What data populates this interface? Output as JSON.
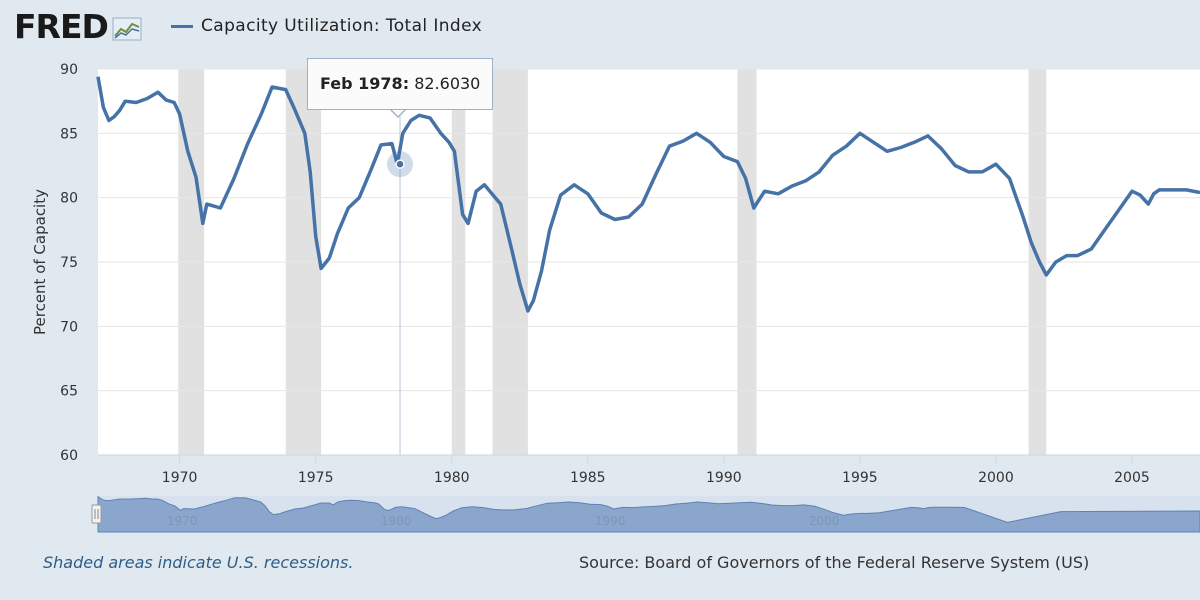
{
  "header": {
    "logo_text": "FRED",
    "logo_icon": "fred-graph-icon"
  },
  "legend": {
    "label": "Capacity Utilization: Total Index"
  },
  "tooltip": {
    "date": "Feb 1978:",
    "value": "82.6030"
  },
  "footer": {
    "note": "Shaded areas indicate U.S. recessions.",
    "source": "Source: Board of Governors of the Federal Reserve System (US)"
  },
  "colors": {
    "line": "#4572a7",
    "recession": "#e1e1e1",
    "background": "#e1e9f0",
    "plot": "#ffffff",
    "navigator": "#8aa6cc"
  },
  "chart_data": {
    "type": "line",
    "title": "",
    "xlabel": "",
    "ylabel": "Percent of Capacity",
    "xlim": [
      1967.0,
      2007.5
    ],
    "ylim": [
      60,
      90
    ],
    "x_ticks": [
      1970,
      1975,
      1980,
      1985,
      1990,
      1995,
      2000,
      2005
    ],
    "y_ticks": [
      60,
      65,
      70,
      75,
      80,
      85,
      90
    ],
    "grid": true,
    "legend_position": "top-left",
    "recessions": [
      [
        1969.95,
        1970.9
      ],
      [
        1973.9,
        1975.2
      ],
      [
        1980.0,
        1980.5
      ],
      [
        1981.5,
        1982.8
      ],
      [
        1990.5,
        1991.2
      ],
      [
        2001.2,
        2001.85
      ]
    ],
    "series": [
      {
        "name": "Capacity Utilization: Total Index",
        "x": [
          1967.0,
          1967.2,
          1967.4,
          1967.6,
          1967.8,
          1968.0,
          1968.4,
          1968.8,
          1969.2,
          1969.5,
          1969.8,
          1970.0,
          1970.3,
          1970.6,
          1970.85,
          1971.0,
          1971.5,
          1972.0,
          1972.5,
          1973.0,
          1973.4,
          1973.9,
          1974.2,
          1974.6,
          1974.8,
          1975.0,
          1975.2,
          1975.5,
          1975.8,
          1976.2,
          1976.6,
          1977.0,
          1977.4,
          1977.8,
          1978.0,
          1978.2,
          1978.5,
          1978.8,
          1979.2,
          1979.6,
          1979.9,
          1980.1,
          1980.4,
          1980.6,
          1980.9,
          1981.2,
          1981.6,
          1981.8,
          1982.2,
          1982.5,
          1982.8,
          1983.0,
          1983.3,
          1983.6,
          1984.0,
          1984.5,
          1985.0,
          1985.5,
          1986.0,
          1986.5,
          1987.0,
          1987.5,
          1988.0,
          1988.5,
          1989.0,
          1989.5,
          1990.0,
          1990.5,
          1990.8,
          1991.1,
          1991.5,
          1992.0,
          1992.5,
          1993.0,
          1993.5,
          1994.0,
          1994.5,
          1995.0,
          1995.5,
          1996.0,
          1996.5,
          1997.0,
          1997.5,
          1998.0,
          1998.5,
          1999.0,
          1999.5,
          2000.0,
          2000.5,
          2001.0,
          2001.3,
          2001.6,
          2001.85,
          2002.2,
          2002.6,
          2003.0,
          2003.5,
          2004.0,
          2004.5,
          2005.0,
          2005.3,
          2005.6,
          2005.8,
          2006.0,
          2006.5,
          2007.0,
          2007.5
        ],
        "values": [
          89.4,
          87.0,
          86.0,
          86.3,
          86.8,
          87.5,
          87.4,
          87.7,
          88.2,
          87.6,
          87.4,
          86.5,
          83.6,
          81.6,
          78.0,
          79.5,
          79.2,
          81.5,
          84.2,
          86.5,
          88.6,
          88.4,
          87.0,
          85.0,
          82.0,
          77.0,
          74.5,
          75.3,
          77.2,
          79.2,
          80.0,
          82.0,
          84.1,
          84.2,
          82.6,
          85.0,
          86.0,
          86.4,
          86.2,
          85.0,
          84.3,
          83.6,
          78.7,
          78.0,
          80.5,
          81.0,
          80.0,
          79.5,
          76.0,
          73.3,
          71.2,
          72.0,
          74.3,
          77.5,
          80.2,
          81.0,
          80.3,
          78.8,
          78.3,
          78.5,
          79.5,
          81.8,
          84.0,
          84.4,
          85.0,
          84.3,
          83.2,
          82.8,
          81.5,
          79.2,
          80.5,
          80.3,
          80.9,
          81.3,
          82.0,
          83.3,
          84.0,
          85.0,
          84.3,
          83.6,
          83.9,
          84.3,
          84.8,
          83.8,
          82.5,
          82.0,
          82.0,
          82.6,
          81.5,
          78.5,
          76.5,
          75.0,
          74.0,
          75.0,
          75.5,
          75.5,
          76.0,
          77.5,
          79.0,
          80.5,
          80.2,
          79.5,
          80.3,
          80.6,
          80.6,
          80.6,
          80.4
        ]
      }
    ]
  }
}
